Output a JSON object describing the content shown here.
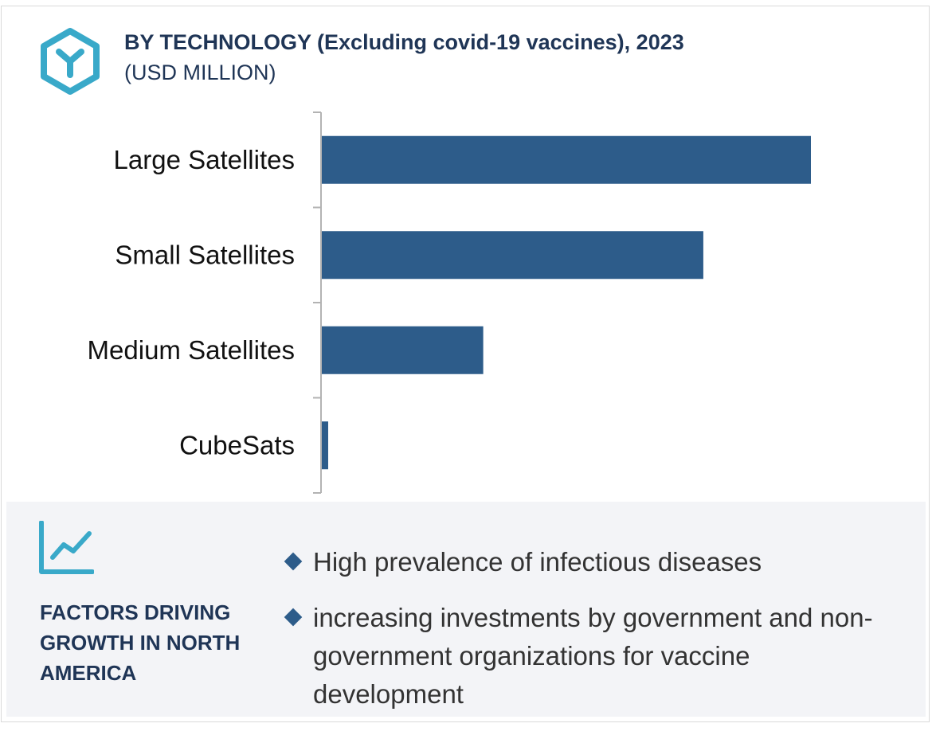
{
  "header": {
    "title": "BY TECHNOLOGY (Excluding covid-19 vaccines), 2023",
    "subtitle": "(USD MILLION)",
    "logo_icon": "hexagon-y-icon"
  },
  "colors": {
    "bar": "#2d5c8a",
    "title": "#1f3556",
    "accent": "#39a9c9",
    "panel_bg": "#f3f4f7"
  },
  "chart_data": {
    "type": "bar",
    "orientation": "horizontal",
    "categories": [
      "Large Satellites",
      "Small Satellites",
      "Medium Satellites",
      "CubeSats"
    ],
    "values": [
      100,
      78,
      33,
      1.3
    ],
    "xlim": [
      0,
      100
    ],
    "value_axis_shown": false,
    "grid": false,
    "legend": "none"
  },
  "factors": {
    "icon": "trend-chart-icon",
    "title": "FACTORS DRIVING GROWTH IN NORTH AMERICA",
    "items": [
      "High prevalence of infectious diseases",
      "increasing investments by government and non-government organizations for vaccine development"
    ]
  }
}
